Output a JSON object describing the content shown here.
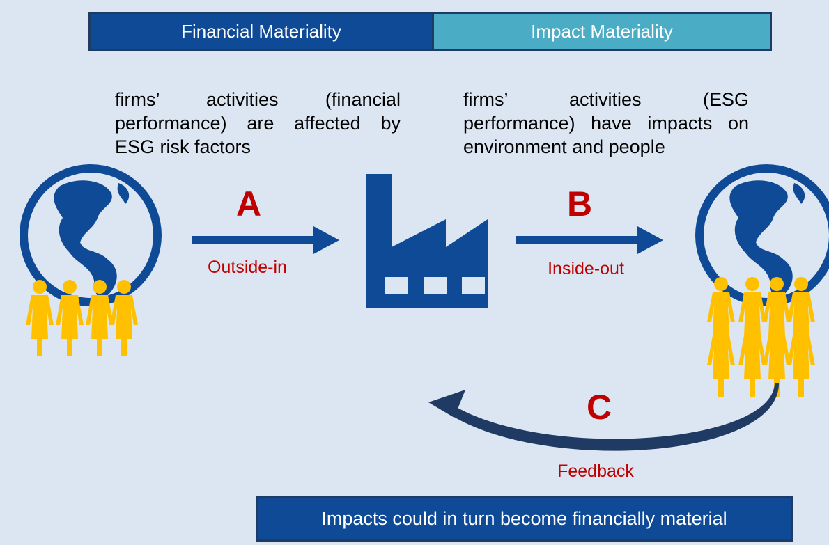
{
  "header": {
    "financial": "Financial Materiality",
    "impact": "Impact Materiality"
  },
  "descriptions": {
    "left": "firms’ activities (financial performance) are affected by ESG risk factors",
    "right": "firms’ activities (ESG performance) have impacts on environment and people"
  },
  "arrows": [
    {
      "letter": "A",
      "label": "Outside-in"
    },
    {
      "letter": "B",
      "label": "Inside-out"
    },
    {
      "letter": "C",
      "label": "Feedback"
    }
  ],
  "footer": "Impacts could in turn become financially material"
}
